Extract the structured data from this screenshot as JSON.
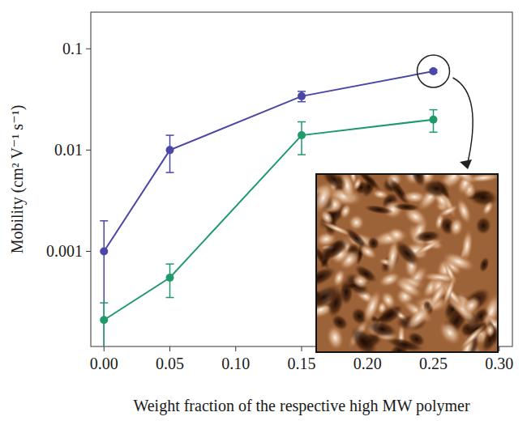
{
  "chart_data": {
    "type": "line",
    "x_label": "Weight fraction of the respective high MW polymer",
    "y_label": "Mobility (cm² V⁻¹ s⁻¹)",
    "log": "y",
    "grid": false,
    "xlim": [
      -0.01,
      0.31
    ],
    "ylim": [
      0.000115,
      0.23
    ],
    "xticks": [
      {
        "value": 0,
        "label": "0.00"
      },
      {
        "value": 0.05,
        "label": "0.05"
      },
      {
        "value": 0.1,
        "label": "0.10"
      },
      {
        "value": 0.15,
        "label": "0.15"
      },
      {
        "value": 0.2,
        "label": "0.20"
      },
      {
        "value": 0.25,
        "label": "0.25"
      },
      {
        "value": 0.3,
        "label": "0.30"
      }
    ],
    "yticks": [
      0.001,
      0.01,
      0.1
    ],
    "x": [
      0,
      0.05,
      0.15,
      0.25
    ],
    "series": [
      {
        "color": "#4b47a6",
        "marker": "circle",
        "line_style": "solid",
        "values": [
          0.001,
          0.01,
          0.034,
          0.06
        ],
        "error": [
          0.001,
          0.004,
          0.004,
          0.002
        ]
      },
      {
        "color": "#1f9a6a",
        "marker": "circle",
        "line_style": "solid",
        "values": [
          0.00021,
          0.00055,
          0.014,
          0.02
        ],
        "error": [
          0.0001,
          0.0002,
          0.005,
          0.005
        ]
      }
    ]
  }
}
